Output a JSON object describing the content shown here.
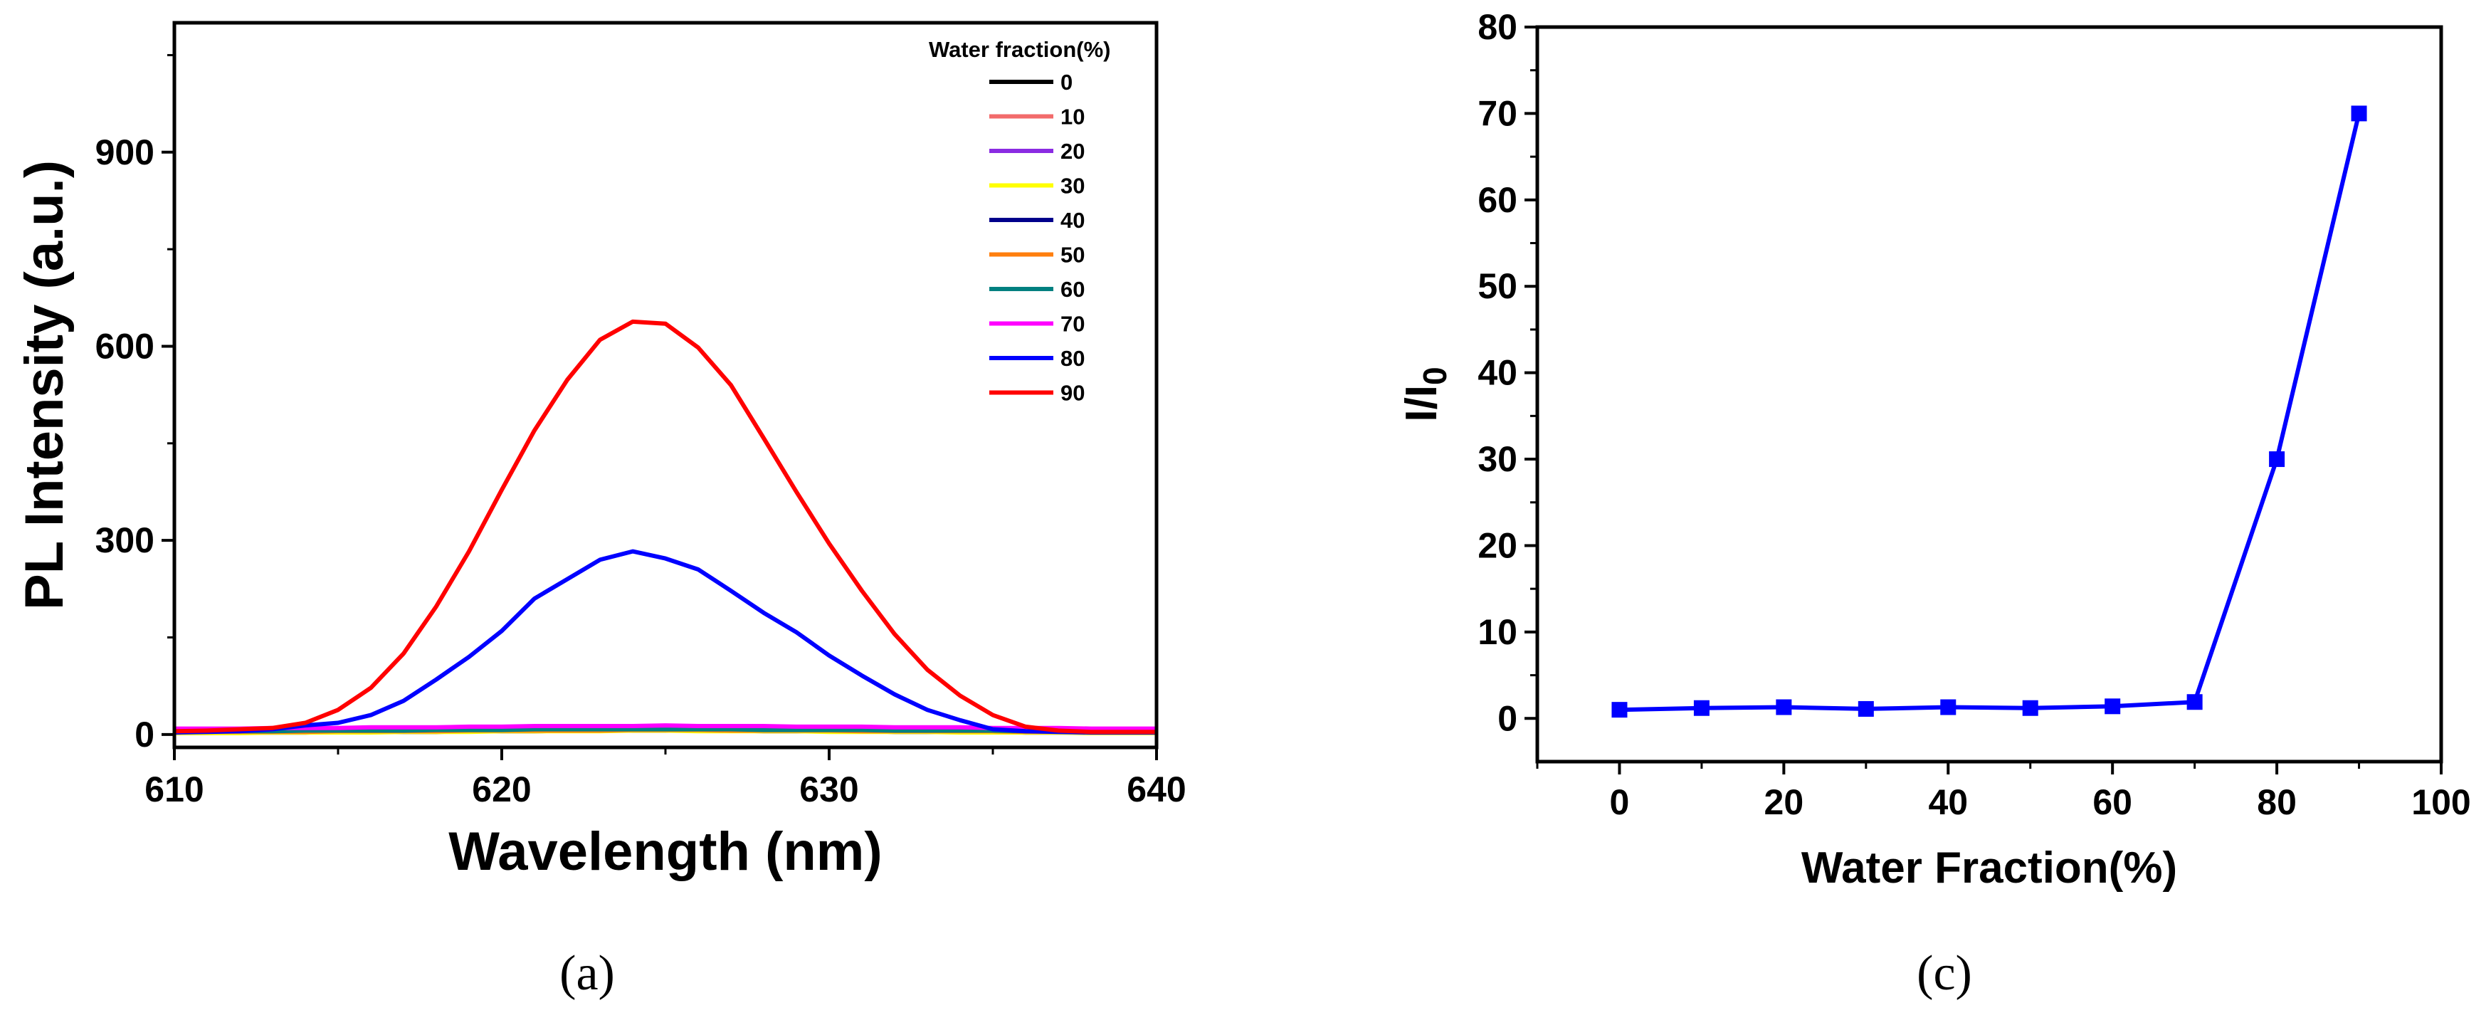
{
  "panels": [
    {
      "label": "(a)"
    },
    {
      "label": "(c)"
    }
  ],
  "chart_data": [
    {
      "type": "line",
      "panel": "(a)",
      "title": "",
      "xlabel": "Wavelength (nm)",
      "ylabel": "PL Intensity (a.u.)",
      "xlim": [
        610,
        640
      ],
      "ylim": [
        -20,
        1100
      ],
      "xticks": [
        610,
        620,
        630,
        640
      ],
      "yticks": [
        0,
        300,
        600,
        900
      ],
      "legend_title": "Water fraction(%)",
      "legend_position": "top-right",
      "x": [
        610,
        611,
        612,
        613,
        614,
        615,
        616,
        617,
        618,
        619,
        620,
        621,
        622,
        623,
        624,
        625,
        626,
        627,
        628,
        629,
        630,
        631,
        632,
        633,
        634,
        635,
        636,
        637,
        638,
        639,
        640
      ],
      "series": [
        {
          "name": "0",
          "color": "#000000",
          "values": [
            3,
            3,
            3,
            3,
            3,
            4,
            4,
            4,
            4,
            5,
            5,
            5,
            6,
            6,
            6,
            6,
            6,
            6,
            5,
            5,
            5,
            5,
            4,
            4,
            4,
            4,
            3,
            3,
            3,
            3,
            3
          ]
        },
        {
          "name": "10",
          "color": "#f26b6b",
          "values": [
            4,
            4,
            4,
            4,
            5,
            5,
            5,
            6,
            6,
            6,
            7,
            7,
            7,
            7,
            8,
            8,
            7,
            7,
            7,
            6,
            6,
            6,
            6,
            5,
            5,
            5,
            5,
            4,
            4,
            4,
            4
          ]
        },
        {
          "name": "20",
          "color": "#8a2be2",
          "values": [
            5,
            5,
            5,
            6,
            6,
            6,
            7,
            7,
            7,
            8,
            8,
            8,
            9,
            9,
            9,
            9,
            9,
            8,
            8,
            8,
            7,
            7,
            7,
            6,
            6,
            6,
            6,
            5,
            5,
            5,
            5
          ]
        },
        {
          "name": "30",
          "color": "#ffff00",
          "values": [
            2,
            2,
            2,
            3,
            3,
            3,
            3,
            4,
            4,
            4,
            5,
            5,
            5,
            5,
            6,
            6,
            5,
            5,
            5,
            5,
            4,
            4,
            4,
            4,
            3,
            3,
            3,
            3,
            2,
            2,
            2
          ]
        },
        {
          "name": "40",
          "color": "#00008b",
          "values": [
            6,
            6,
            6,
            7,
            7,
            7,
            8,
            8,
            8,
            9,
            9,
            9,
            10,
            10,
            10,
            10,
            10,
            10,
            9,
            9,
            9,
            8,
            8,
            8,
            7,
            7,
            7,
            6,
            6,
            6,
            6
          ]
        },
        {
          "name": "50",
          "color": "#ff7f0e",
          "values": [
            4,
            4,
            4,
            4,
            4,
            5,
            5,
            5,
            5,
            6,
            6,
            6,
            6,
            6,
            7,
            7,
            7,
            6,
            6,
            6,
            6,
            5,
            5,
            5,
            5,
            5,
            4,
            4,
            4,
            4,
            4
          ]
        },
        {
          "name": "60",
          "color": "#008080",
          "values": [
            5,
            5,
            5,
            5,
            6,
            6,
            6,
            6,
            7,
            7,
            7,
            8,
            8,
            8,
            8,
            8,
            8,
            8,
            7,
            7,
            7,
            7,
            6,
            6,
            6,
            6,
            5,
            5,
            5,
            5,
            5
          ]
        },
        {
          "name": "70",
          "color": "#ff00ff",
          "values": [
            9,
            9,
            9,
            10,
            10,
            10,
            11,
            11,
            11,
            12,
            12,
            13,
            13,
            13,
            13,
            14,
            13,
            13,
            13,
            12,
            12,
            12,
            11,
            11,
            11,
            10,
            10,
            10,
            9,
            9,
            9
          ]
        },
        {
          "name": "80",
          "color": "#0000ff",
          "values": [
            3,
            4,
            5,
            8,
            14,
            18,
            30,
            52,
            85,
            120,
            160,
            210,
            240,
            270,
            283,
            272,
            255,
            222,
            188,
            158,
            122,
            91,
            62,
            38,
            22,
            8,
            5,
            4,
            3,
            3,
            3
          ]
        },
        {
          "name": "90",
          "color": "#ff0000",
          "values": [
            5,
            6,
            8,
            10,
            18,
            38,
            72,
            125,
            198,
            283,
            378,
            470,
            548,
            610,
            638,
            635,
            598,
            540,
            458,
            375,
            295,
            222,
            155,
            100,
            60,
            30,
            12,
            6,
            4,
            4,
            4
          ]
        }
      ]
    },
    {
      "type": "line",
      "panel": "(c)",
      "title": "",
      "xlabel": "Water Fraction(%)",
      "ylabel": "I/I0",
      "ylabel_main": "I/I",
      "ylabel_sub": "0",
      "xlim": [
        -10,
        100
      ],
      "ylim": [
        -5,
        80
      ],
      "xticks": [
        0,
        20,
        40,
        60,
        80,
        100
      ],
      "yticks": [
        0,
        10,
        20,
        30,
        40,
        50,
        60,
        70,
        80
      ],
      "color": "#0000ff",
      "marker": "square",
      "x": [
        0,
        10,
        20,
        30,
        40,
        50,
        60,
        70,
        80,
        90
      ],
      "values": [
        1.0,
        1.2,
        1.3,
        1.1,
        1.3,
        1.2,
        1.4,
        1.9,
        30,
        70
      ]
    }
  ]
}
